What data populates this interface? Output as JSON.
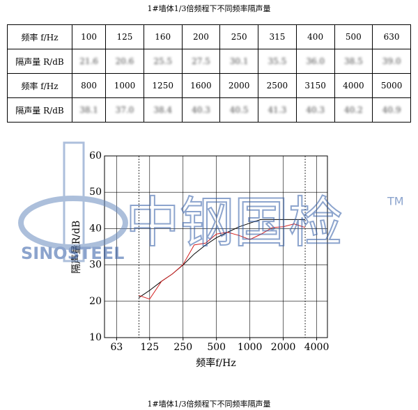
{
  "header": {
    "title": "1#墙体1/3倍频程下不同频率隔声量"
  },
  "table": {
    "rows": [
      [
        "频率 f/Hz",
        "100",
        "125",
        "160",
        "200",
        "250",
        "315",
        "400",
        "500",
        "630"
      ],
      [
        "隔声量 R/dB",
        "21.6",
        "20.6",
        "25.5",
        "27.5",
        "30.1",
        "35.5",
        "36.0",
        "38.5",
        "39.0"
      ],
      [
        "频率 f/Hz",
        "800",
        "1000",
        "1250",
        "1600",
        "2000",
        "2500",
        "3150",
        "4000",
        "5000"
      ],
      [
        "隔声量 R/dB",
        "38.1",
        "37.0",
        "38.4",
        "40.3",
        "40.5",
        "41.3",
        "40.3",
        "40.2",
        "40.9"
      ]
    ]
  },
  "chart_data": {
    "type": "line",
    "x_label": "频率f/Hz",
    "y_label": "隔声量R/dB",
    "log_x": true,
    "grid": true,
    "xlim": [
      49,
      5000
    ],
    "xticks": [
      63,
      125,
      250,
      500,
      1000,
      2000,
      4000
    ],
    "ylim": [
      10,
      60
    ],
    "yticks": [
      10,
      20,
      30,
      40,
      50,
      60
    ],
    "vlines": [
      100,
      3150
    ],
    "series": [
      {
        "color": "#000000",
        "x": [
          100,
          125,
          160,
          200,
          250,
          315,
          400,
          500,
          630,
          800,
          1000,
          1250,
          1600,
          2000,
          2500,
          3150
        ],
        "values": [
          21,
          23,
          25.5,
          27.5,
          30,
          33,
          35.5,
          37.5,
          39,
          40.5,
          41.5,
          42.5,
          42.5,
          42.5,
          42.5,
          42.5
        ]
      },
      {
        "color": "#d42020",
        "x": [
          100,
          125,
          160,
          200,
          250,
          315,
          400,
          500,
          630,
          800,
          1000,
          1250,
          1600,
          2000,
          2500,
          3150
        ],
        "values": [
          21.6,
          20.6,
          25.5,
          27.5,
          30.1,
          35.5,
          36.0,
          38.5,
          39.0,
          38.1,
          37.0,
          38.4,
          40.3,
          40.5,
          41.3,
          40.3
        ]
      }
    ]
  },
  "watermark": {
    "logo": "SINOSTEEL",
    "text": "中钢国检",
    "tm": "TM"
  },
  "caption": "1#墙体1/3倍频程下不同频率隔声量"
}
